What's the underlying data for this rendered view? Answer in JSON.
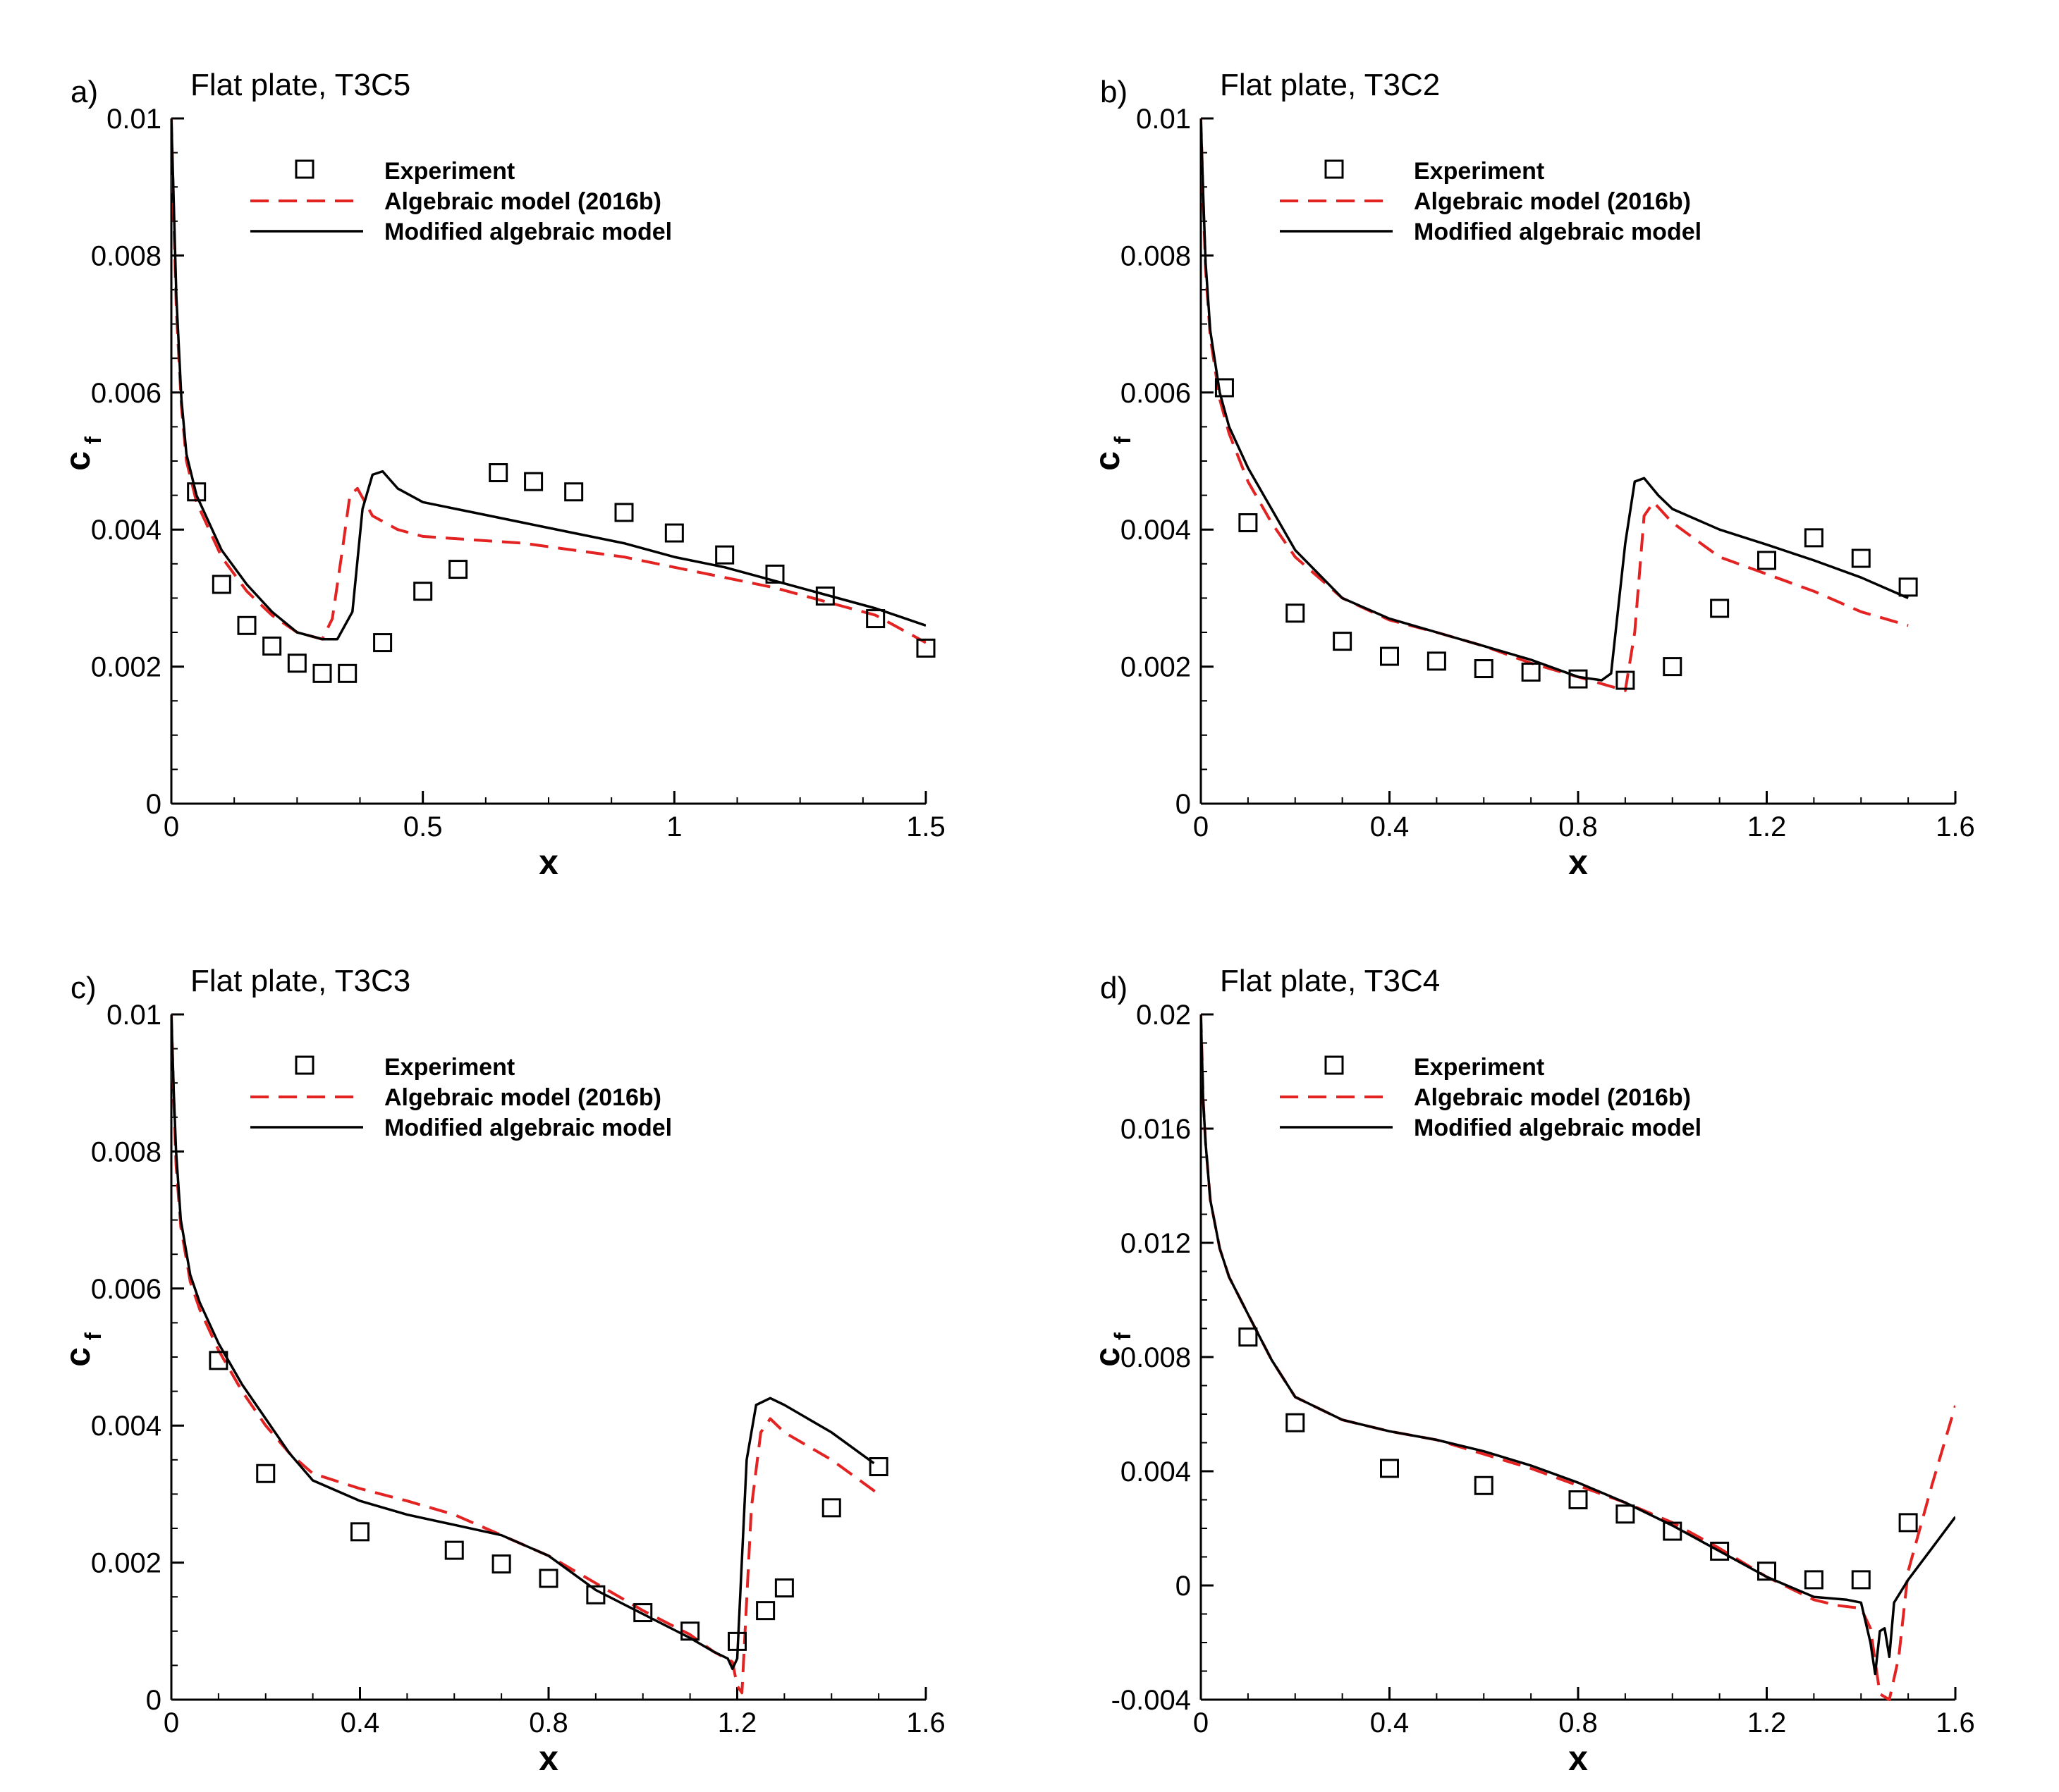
{
  "colors": {
    "experiment": "#000000",
    "algebraic": "#e32222",
    "modified": "#000000",
    "axis": "#000000"
  },
  "chart_data": [
    {
      "type": "line",
      "panel": "a)",
      "title": "Flat plate, T3C5",
      "xlabel": "x",
      "ylabel": "c",
      "ylabel_sub": "f",
      "xlim": [
        0,
        1.5
      ],
      "ylim": [
        0,
        0.01
      ],
      "xticks": [
        0,
        0.5,
        1,
        1.5
      ],
      "xtick_labels": [
        "0",
        "0.5",
        "1",
        "1.5"
      ],
      "yticks": [
        0,
        0.002,
        0.004,
        0.006,
        0.008,
        0.01
      ],
      "ytick_labels": [
        "0",
        "0.002",
        "0.004",
        "0.006",
        "0.008",
        "0.01"
      ],
      "legend": [
        "Experiment",
        "Algebraic model (2016b)",
        "Modified algebraic model"
      ],
      "series": [
        {
          "name": "Experiment",
          "style": "square-marker",
          "x": [
            0.05,
            0.1,
            0.15,
            0.2,
            0.25,
            0.3,
            0.35,
            0.42,
            0.5,
            0.57,
            0.65,
            0.72,
            0.8,
            0.9,
            1.0,
            1.1,
            1.2,
            1.3,
            1.4,
            1.5
          ],
          "y": [
            0.00455,
            0.0032,
            0.0026,
            0.0023,
            0.00205,
            0.0019,
            0.0019,
            0.00235,
            0.0031,
            0.00342,
            0.00483,
            0.0047,
            0.00455,
            0.00425,
            0.00395,
            0.00363,
            0.00335,
            0.00303,
            0.0027,
            0.00227
          ]
        },
        {
          "name": "Algebraic model (2016b)",
          "style": "dashed",
          "x": [
            0.0,
            0.005,
            0.01,
            0.02,
            0.03,
            0.05,
            0.1,
            0.15,
            0.2,
            0.25,
            0.3,
            0.32,
            0.34,
            0.355,
            0.37,
            0.4,
            0.45,
            0.5,
            0.6,
            0.7,
            0.8,
            0.9,
            1.0,
            1.1,
            1.2,
            1.3,
            1.4,
            1.5
          ],
          "y": [
            0.01,
            0.0085,
            0.0072,
            0.0058,
            0.005,
            0.0044,
            0.0036,
            0.0031,
            0.00275,
            0.0025,
            0.0024,
            0.0027,
            0.0037,
            0.0045,
            0.0046,
            0.0042,
            0.004,
            0.0039,
            0.00385,
            0.0038,
            0.0037,
            0.0036,
            0.00345,
            0.0033,
            0.00315,
            0.00295,
            0.00275,
            0.00235
          ]
        },
        {
          "name": "Modified algebraic model",
          "style": "solid",
          "x": [
            0.0,
            0.005,
            0.01,
            0.02,
            0.03,
            0.05,
            0.1,
            0.15,
            0.2,
            0.25,
            0.3,
            0.33,
            0.36,
            0.38,
            0.4,
            0.42,
            0.45,
            0.5,
            0.6,
            0.7,
            0.8,
            0.9,
            1.0,
            1.1,
            1.2,
            1.3,
            1.4,
            1.5
          ],
          "y": [
            0.01,
            0.0087,
            0.0074,
            0.0059,
            0.0051,
            0.0045,
            0.0037,
            0.0032,
            0.0028,
            0.0025,
            0.0024,
            0.0024,
            0.0028,
            0.0043,
            0.0048,
            0.00485,
            0.0046,
            0.0044,
            0.00425,
            0.0041,
            0.00395,
            0.0038,
            0.0036,
            0.00345,
            0.00325,
            0.00305,
            0.00285,
            0.0026
          ]
        }
      ]
    },
    {
      "type": "line",
      "panel": "b)",
      "title": "Flat plate, T3C2",
      "xlabel": "x",
      "ylabel": "c",
      "ylabel_sub": "f",
      "xlim": [
        0,
        1.6
      ],
      "ylim": [
        0,
        0.01
      ],
      "xticks": [
        0,
        0.4,
        0.8,
        1.2,
        1.6
      ],
      "xtick_labels": [
        "0",
        "0.4",
        "0.8",
        "1.2",
        "1.6"
      ],
      "yticks": [
        0,
        0.002,
        0.004,
        0.006,
        0.008,
        0.01
      ],
      "ytick_labels": [
        "0",
        "0.002",
        "0.004",
        "0.006",
        "0.008",
        "0.01"
      ],
      "legend": [
        "Experiment",
        "Algebraic model (2016b)",
        "Modified algebraic model"
      ],
      "series": [
        {
          "name": "Experiment",
          "style": "square-marker",
          "x": [
            0.05,
            0.1,
            0.2,
            0.3,
            0.4,
            0.5,
            0.6,
            0.7,
            0.8,
            0.9,
            1.0,
            1.1,
            1.2,
            1.3,
            1.4,
            1.5
          ],
          "y": [
            0.00607,
            0.0041,
            0.00278,
            0.00237,
            0.00215,
            0.00208,
            0.00197,
            0.00192,
            0.00182,
            0.0018,
            0.002,
            0.00285,
            0.00355,
            0.00388,
            0.00358,
            0.00316
          ]
        },
        {
          "name": "Algebraic model (2016b)",
          "style": "dashed",
          "x": [
            0.0,
            0.005,
            0.01,
            0.02,
            0.04,
            0.06,
            0.1,
            0.15,
            0.2,
            0.3,
            0.4,
            0.5,
            0.6,
            0.7,
            0.8,
            0.85,
            0.9,
            0.92,
            0.94,
            0.96,
            1.0,
            1.1,
            1.2,
            1.3,
            1.4,
            1.5
          ],
          "y": [
            0.01,
            0.0088,
            0.0078,
            0.0068,
            0.0059,
            0.0054,
            0.0047,
            0.0041,
            0.0036,
            0.003,
            0.00268,
            0.0025,
            0.0023,
            0.00205,
            0.00185,
            0.00175,
            0.00165,
            0.0025,
            0.0042,
            0.0044,
            0.0041,
            0.0036,
            0.00335,
            0.0031,
            0.0028,
            0.0026
          ]
        },
        {
          "name": "Modified algebraic model",
          "style": "solid",
          "x": [
            0.0,
            0.005,
            0.01,
            0.02,
            0.04,
            0.06,
            0.1,
            0.15,
            0.2,
            0.3,
            0.4,
            0.5,
            0.6,
            0.7,
            0.8,
            0.85,
            0.87,
            0.9,
            0.92,
            0.94,
            0.97,
            1.0,
            1.1,
            1.2,
            1.3,
            1.4,
            1.5
          ],
          "y": [
            0.01,
            0.0089,
            0.0079,
            0.0069,
            0.006,
            0.0055,
            0.0049,
            0.0043,
            0.0037,
            0.003,
            0.0027,
            0.0025,
            0.0023,
            0.0021,
            0.00185,
            0.0018,
            0.0019,
            0.0038,
            0.0047,
            0.00475,
            0.0045,
            0.0043,
            0.004,
            0.00378,
            0.00355,
            0.0033,
            0.003
          ]
        }
      ]
    },
    {
      "type": "line",
      "panel": "c)",
      "title": "Flat plate, T3C3",
      "xlabel": "x",
      "ylabel": "c",
      "ylabel_sub": "f",
      "xlim": [
        0,
        1.6
      ],
      "ylim": [
        0,
        0.01
      ],
      "xticks": [
        0,
        0.4,
        0.8,
        1.2,
        1.6
      ],
      "xtick_labels": [
        "0",
        "0.4",
        "0.8",
        "1.2",
        "1.6"
      ],
      "yticks": [
        0,
        0.002,
        0.004,
        0.006,
        0.008,
        0.01
      ],
      "ytick_labels": [
        "0",
        "0.002",
        "0.004",
        "0.006",
        "0.008",
        "0.01"
      ],
      "legend": [
        "Experiment",
        "Algebraic model (2016b)",
        "Modified algebraic model"
      ],
      "series": [
        {
          "name": "Experiment",
          "style": "square-marker",
          "x": [
            0.1,
            0.2,
            0.4,
            0.6,
            0.7,
            0.8,
            0.9,
            1.0,
            1.1,
            1.2,
            1.26,
            1.3,
            1.4,
            1.5
          ],
          "y": [
            0.00495,
            0.0033,
            0.00245,
            0.00218,
            0.00198,
            0.00177,
            0.00153,
            0.00127,
            0.001,
            0.00085,
            0.0013,
            0.00163,
            0.0028,
            0.0034
          ]
        },
        {
          "name": "Algebraic model (2016b)",
          "style": "dashed",
          "x": [
            0.0,
            0.005,
            0.01,
            0.02,
            0.04,
            0.06,
            0.1,
            0.15,
            0.2,
            0.25,
            0.3,
            0.4,
            0.5,
            0.6,
            0.7,
            0.8,
            0.9,
            1.0,
            1.1,
            1.15,
            1.19,
            1.2,
            1.21,
            1.23,
            1.25,
            1.27,
            1.3,
            1.4,
            1.5
          ],
          "y": [
            0.01,
            0.0088,
            0.0078,
            0.0069,
            0.0061,
            0.0057,
            0.0051,
            0.0045,
            0.004,
            0.0036,
            0.0033,
            0.00308,
            0.0029,
            0.0027,
            0.0024,
            0.0021,
            0.0017,
            0.0013,
            0.00095,
            0.0007,
            0.00055,
            0.0002,
            0.0001,
            0.0028,
            0.0039,
            0.0041,
            0.0039,
            0.0035,
            0.003
          ]
        },
        {
          "name": "Modified algebraic model",
          "style": "solid",
          "x": [
            0.0,
            0.005,
            0.01,
            0.02,
            0.04,
            0.06,
            0.1,
            0.15,
            0.2,
            0.25,
            0.3,
            0.4,
            0.5,
            0.6,
            0.7,
            0.8,
            0.9,
            1.0,
            1.1,
            1.15,
            1.18,
            1.19,
            1.2,
            1.22,
            1.24,
            1.27,
            1.3,
            1.4,
            1.49
          ],
          "y": [
            0.01,
            0.0089,
            0.008,
            0.007,
            0.0062,
            0.0058,
            0.0052,
            0.0046,
            0.0041,
            0.0036,
            0.0032,
            0.0029,
            0.0027,
            0.00255,
            0.0024,
            0.0021,
            0.0016,
            0.00125,
            0.0009,
            0.0007,
            0.0006,
            0.00045,
            0.0006,
            0.0035,
            0.0043,
            0.0044,
            0.0043,
            0.0039,
            0.00345
          ]
        }
      ]
    },
    {
      "type": "line",
      "panel": "d)",
      "title": "Flat plate, T3C4",
      "xlabel": "x",
      "ylabel": "c",
      "ylabel_sub": "f",
      "xlim": [
        0,
        1.6
      ],
      "ylim": [
        -0.004,
        0.02
      ],
      "xticks": [
        0,
        0.4,
        0.8,
        1.2,
        1.6
      ],
      "xtick_labels": [
        "0",
        "0.4",
        "0.8",
        "1.2",
        "1.6"
      ],
      "yticks": [
        -0.004,
        0,
        0.004,
        0.008,
        0.012,
        0.016,
        0.02
      ],
      "ytick_labels": [
        "-0.004",
        "0",
        "0.004",
        "0.008",
        "0.012",
        "0.016",
        "0.02"
      ],
      "legend": [
        "Experiment",
        "Algebraic model (2016b)",
        "Modified algebraic model"
      ],
      "series": [
        {
          "name": "Experiment",
          "style": "square-marker",
          "x": [
            0.1,
            0.2,
            0.4,
            0.6,
            0.8,
            0.9,
            1.0,
            1.1,
            1.2,
            1.3,
            1.4,
            1.5
          ],
          "y": [
            0.0087,
            0.0057,
            0.0041,
            0.0035,
            0.003,
            0.0025,
            0.0019,
            0.0012,
            0.0005,
            0.0002,
            0.0002,
            0.0022
          ]
        },
        {
          "name": "Algebraic model (2016b)",
          "style": "dashed",
          "x": [
            0.0,
            0.005,
            0.01,
            0.02,
            0.04,
            0.06,
            0.1,
            0.15,
            0.2,
            0.3,
            0.4,
            0.5,
            0.6,
            0.7,
            0.8,
            0.9,
            1.0,
            1.1,
            1.2,
            1.3,
            1.35,
            1.4,
            1.42,
            1.44,
            1.46,
            1.48,
            1.5,
            1.55,
            1.6
          ],
          "y": [
            0.02,
            0.017,
            0.0155,
            0.0135,
            0.0118,
            0.0108,
            0.0095,
            0.0079,
            0.0066,
            0.0058,
            0.0054,
            0.0051,
            0.0046,
            0.0041,
            0.0035,
            0.0029,
            0.0022,
            0.0013,
            0.0003,
            -0.0005,
            -0.0007,
            -0.0008,
            -0.0015,
            -0.0038,
            -0.004,
            -0.0025,
            0.0005,
            0.0035,
            0.0063
          ]
        },
        {
          "name": "Modified algebraic model",
          "style": "solid",
          "x": [
            0.0,
            0.005,
            0.01,
            0.02,
            0.04,
            0.06,
            0.1,
            0.15,
            0.2,
            0.3,
            0.4,
            0.5,
            0.6,
            0.7,
            0.8,
            0.9,
            1.0,
            1.1,
            1.2,
            1.3,
            1.37,
            1.4,
            1.42,
            1.43,
            1.44,
            1.45,
            1.46,
            1.47,
            1.5,
            1.55,
            1.6
          ],
          "y": [
            0.02,
            0.017,
            0.0155,
            0.0135,
            0.0118,
            0.0108,
            0.0095,
            0.0079,
            0.0066,
            0.0058,
            0.0054,
            0.0051,
            0.0047,
            0.0042,
            0.0036,
            0.0029,
            0.0021,
            0.0012,
            0.0003,
            -0.0004,
            -0.0005,
            -0.0006,
            -0.002,
            -0.0031,
            -0.0016,
            -0.0015,
            -0.0025,
            -0.0006,
            0.0002,
            0.0013,
            0.0024
          ]
        }
      ]
    }
  ]
}
